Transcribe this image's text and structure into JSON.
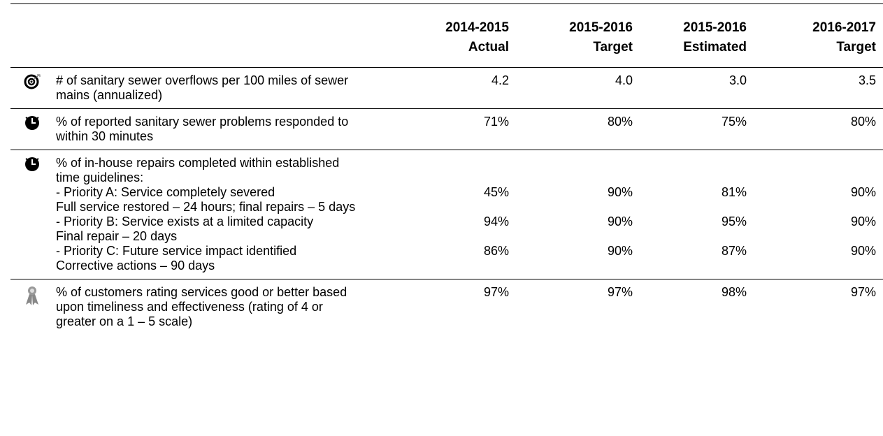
{
  "table": {
    "columns": [
      {
        "period": "2014-2015",
        "kind": "Actual"
      },
      {
        "period": "2015-2016",
        "kind": "Target"
      },
      {
        "period": "2015-2016",
        "kind": "Estimated"
      },
      {
        "period": "2016-2017",
        "kind": "Target"
      }
    ],
    "rows": [
      {
        "label": "# of sanitary sewer overflows per 100 miles of sewer mains (annualized)",
        "values": [
          "4.2",
          "4.0",
          "3.0",
          "3.5"
        ]
      },
      {
        "label": "% of reported sanitary sewer problems responded to within 30 minutes",
        "values": [
          "71%",
          "80%",
          "75%",
          "80%"
        ]
      },
      {
        "label": "% of in-house repairs completed within established time guidelines:",
        "items": [
          {
            "label": "- Priority A:  Service completely severed",
            "detail": "Full service restored – 24 hours; final repairs – 5 days",
            "values": [
              "45%",
              "90%",
              "81%",
              "90%"
            ]
          },
          {
            "label": "- Priority B:  Service exists at a limited capacity",
            "detail": "Final repair – 20 days",
            "values": [
              "94%",
              "90%",
              "95%",
              "90%"
            ]
          },
          {
            "label": "- Priority C:  Future service impact identified",
            "detail": "Corrective actions – 90 days",
            "values": [
              "86%",
              "90%",
              "87%",
              "90%"
            ]
          }
        ]
      },
      {
        "label": "% of customers rating services good or better based upon timeliness and effectiveness (rating of 4 or greater on a 1 – 5 scale)",
        "values": [
          "97%",
          "97%",
          "98%",
          "97%"
        ]
      }
    ]
  }
}
